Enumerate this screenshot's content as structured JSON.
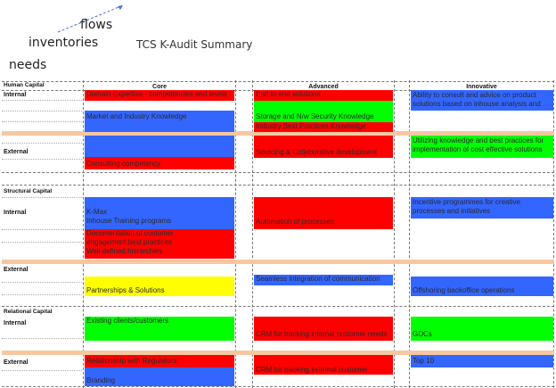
{
  "header": {
    "words": [
      "flows",
      "inventories",
      "needs"
    ],
    "title": "TCS K-Audit Summary"
  },
  "columns": [
    "Core",
    "Advanced",
    "Innovative"
  ],
  "sections": {
    "human": "Human Capital",
    "structural": "Structural Capital",
    "relational": "Relational Capital"
  },
  "row_labels": {
    "internal": "Internal",
    "external": "External"
  },
  "cells": {
    "core": {
      "domain": "Domain Expertise - competencies and levels",
      "market": "Market and Industry Knowledge",
      "consulting": "Consulting competency",
      "kmax": "K-Max",
      "training": "Inhouse Training programs",
      "documentation": "Documentation of customer engagement best practices",
      "hierarchies": "Well defined hierarchies",
      "partnerships": "Partnerships & Solutions",
      "clients": "Existing clients/customers",
      "regulators": "Relationship with Regulators",
      "branding": "Branding"
    },
    "advanced": {
      "e2e": "End to end solutions",
      "storage": "Storage and N/w Security Knowledge",
      "industry": "Industry Best Practices Knowledge",
      "sourcing": "Sourcing & Collaborative development",
      "automation": "Automation of processes",
      "seamless": "Seamless integration of communication",
      "crm_internal": "CRM for tracking internal customer needs",
      "crm_external": "CRM for tracking external customer"
    },
    "innovative": {
      "consult": "Ability to consult and advice on product solutions based on inhouse analysis and",
      "utilizing": "Utilizing knowledge and best practices for implementation of cost effective solutions",
      "incentive": "Incentive programmes for creative processes and initiatives",
      "offshoring": "Offshoring backoffice operations",
      "gdcs": "GDCs",
      "top10": "Top 10"
    }
  },
  "colors": {
    "red": "#ff0000",
    "blue": "#3366ff",
    "green": "#00ff00",
    "yellow": "#ffff00",
    "band": "#f7c7a0"
  }
}
